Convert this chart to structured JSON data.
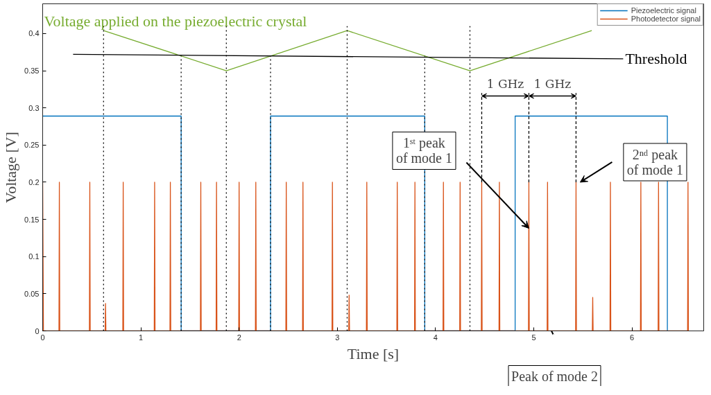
{
  "chart_data": {
    "type": "line",
    "xlabel": "Time [s]",
    "ylabel": "Voltage [V]",
    "xlim": [
      0,
      6.73
    ],
    "ylim": [
      0,
      0.44
    ],
    "xticks": [
      0,
      1,
      2,
      3,
      4,
      5,
      6
    ],
    "yticks": [
      0,
      0.05,
      0.1,
      0.15,
      0.2,
      0.25,
      0.3,
      0.35,
      0.4
    ],
    "legend": "top right",
    "series": [
      {
        "name": "Piezoelectric signal",
        "color": "#0072bd",
        "x": [
          0,
          1.41,
          1.41,
          2.32,
          2.32,
          3.89,
          3.89,
          4.81,
          4.81,
          6.36,
          6.36
        ],
        "values": [
          0.289,
          0.289,
          0,
          0,
          0.289,
          0.289,
          0,
          0,
          0.289,
          0.289,
          0
        ]
      },
      {
        "name": "Photodetector signal",
        "color": "#d95319",
        "x": [
          0,
          0.008,
          0.166,
          0.17,
          0.174,
          0.476,
          0.48,
          0.484,
          0.636,
          0.64,
          0.644,
          0.816,
          0.82,
          0.824,
          1.136,
          1.14,
          1.144,
          1.296,
          1.3,
          1.304,
          1.606,
          1.61,
          1.614,
          1.766,
          1.77,
          1.774,
          1.996,
          2,
          2.004,
          2.166,
          2.17,
          2.174,
          2.476,
          2.48,
          2.484,
          2.646,
          2.65,
          2.654,
          2.946,
          2.95,
          2.954,
          3.116,
          3.12,
          3.124,
          3.296,
          3.3,
          3.304,
          3.606,
          3.61,
          3.614,
          3.786,
          3.79,
          3.794,
          4.076,
          4.08,
          4.084,
          4.246,
          4.25,
          4.254,
          4.466,
          4.47,
          4.474,
          4.646,
          4.65,
          4.654,
          4.946,
          4.95,
          4.954,
          5.136,
          5.14,
          5.144,
          5.426,
          5.43,
          5.434,
          5.596,
          5.6,
          5.604,
          5.776,
          5.78,
          5.784,
          6.086,
          6.09,
          6.094,
          6.266,
          6.27,
          6.274,
          6.566,
          6.57,
          6.574
        ],
        "values": [
          0.2,
          0,
          0,
          0.2,
          0,
          0,
          0.2,
          0,
          0,
          0.037,
          0,
          0,
          0.2,
          0,
          0,
          0.2,
          0,
          0,
          0.2,
          0,
          0,
          0.2,
          0,
          0,
          0.2,
          0,
          0,
          0.2,
          0,
          0,
          0.2,
          0,
          0,
          0.2,
          0,
          0,
          0.2,
          0,
          0,
          0.2,
          0,
          0,
          0.048,
          0,
          0,
          0.2,
          0,
          0,
          0.2,
          0,
          0,
          0.2,
          0,
          0,
          0.2,
          0,
          0,
          0.2,
          0,
          0,
          0.2,
          0,
          0,
          0.2,
          0,
          0,
          0.2,
          0,
          0,
          0.2,
          0,
          0,
          0.2,
          0,
          0,
          0.045,
          0,
          0,
          0.2,
          0,
          0,
          0.2,
          0,
          0,
          0.2,
          0,
          0,
          0.2,
          0
        ]
      },
      {
        "name": "Voltage applied on the piezoelectric crystal",
        "color": "#77ac30",
        "x": [
          0.62,
          1.87,
          3.1,
          4.35,
          5.59
        ],
        "values": [
          0.404,
          0.35,
          0.404,
          0.35,
          0.404
        ]
      },
      {
        "name": "Threshold",
        "color": "#000000",
        "x": [
          0.31,
          5.91
        ],
        "values": [
          0.372,
          0.366
        ]
      },
      {
        "color": "#000000",
        "line_style": "dotted",
        "x": [
          0.62,
          0.62
        ],
        "values": [
          0,
          0.41
        ]
      },
      {
        "color": "#000000",
        "line_style": "dotted",
        "x": [
          1.41,
          1.41
        ],
        "values": [
          0,
          0.37
        ]
      },
      {
        "color": "#000000",
        "line_style": "dotted",
        "x": [
          1.87,
          1.87
        ],
        "values": [
          0,
          0.41
        ]
      },
      {
        "color": "#000000",
        "line_style": "dotted",
        "x": [
          2.32,
          2.32
        ],
        "values": [
          0,
          0.37
        ]
      },
      {
        "color": "#000000",
        "line_style": "dotted",
        "x": [
          3.1,
          3.1
        ],
        "values": [
          0,
          0.41
        ]
      },
      {
        "color": "#000000",
        "line_style": "dotted",
        "x": [
          3.89,
          3.89
        ],
        "values": [
          0,
          0.37
        ]
      },
      {
        "color": "#000000",
        "line_style": "dotted",
        "x": [
          4.35,
          4.35
        ],
        "values": [
          0,
          0.41
        ]
      },
      {
        "color": "#000000",
        "line_style": "dashed",
        "x": [
          4.47,
          4.47
        ],
        "values": [
          0.2,
          0.32
        ]
      },
      {
        "color": "#000000",
        "line_style": "dashed",
        "x": [
          4.95,
          4.95
        ],
        "values": [
          0.2,
          0.32
        ]
      },
      {
        "color": "#000000",
        "line_style": "dashed",
        "x": [
          5.43,
          5.43
        ],
        "values": [
          0.2,
          0.32
        ]
      }
    ],
    "annotations": [
      {
        "text": "1 GHz",
        "x": 4.47,
        "y": 0.316
      },
      {
        "text": "1 GHz",
        "x": 4.95,
        "y": 0.316
      },
      {
        "text": "1ˢᵗ peak\nof mode 1",
        "x": 4.95,
        "y": 0.138
      },
      {
        "text": "2ⁿᵈ peak\nof mode 1",
        "x": 5.43,
        "y": 0.2
      },
      {
        "text": "Peak of mode 2",
        "x": 5.18,
        "y": 0
      }
    ]
  }
}
